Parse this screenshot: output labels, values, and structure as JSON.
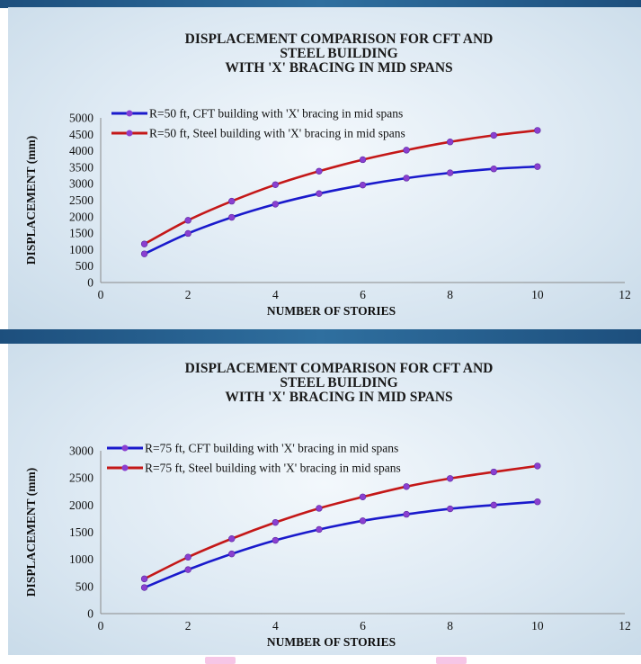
{
  "chart_data": [
    {
      "type": "line",
      "title_lines": [
        "DISPLACEMENT COMPARISON  FOR CFT AND",
        "STEEL BUILDING",
        "WITH 'X' BRACING IN MID SPANS"
      ],
      "xlabel": "NUMBER OF STORIES",
      "ylabel": "DISPLACEMENT (mm)",
      "xlim": [
        0,
        12
      ],
      "ylim": [
        0,
        5000
      ],
      "xticks": [
        0,
        2,
        4,
        6,
        8,
        10,
        12
      ],
      "yticks": [
        0,
        500,
        1000,
        1500,
        2000,
        2500,
        3000,
        3500,
        4000,
        4500,
        5000
      ],
      "legend_position": "top",
      "grid": false,
      "x": [
        1,
        2,
        3,
        4,
        5,
        6,
        7,
        8,
        9,
        10
      ],
      "series": [
        {
          "name": "R=50 ft, CFT building with 'X' bracing in mid spans",
          "color": "#1a1acc",
          "marker_color": "#8a3fd0",
          "values": [
            870,
            1490,
            1980,
            2380,
            2700,
            2960,
            3170,
            3330,
            3450,
            3520
          ]
        },
        {
          "name": "R=50 ft, Steel building with 'X' bracing in mid spans",
          "color": "#c41818",
          "marker_color": "#8a3fd0",
          "values": [
            1170,
            1890,
            2470,
            2970,
            3380,
            3730,
            4020,
            4270,
            4470,
            4620
          ]
        }
      ]
    },
    {
      "type": "line",
      "title_lines": [
        "DISPLACEMENT COMPARISON  FOR CFT AND",
        "STEEL BUILDING",
        "WITH 'X' BRACING IN MID SPANS"
      ],
      "xlabel": "NUMBER OF STORIES",
      "ylabel": "DISPLACEMENT (mm)",
      "xlim": [
        0,
        12
      ],
      "ylim": [
        0,
        3000
      ],
      "xticks": [
        0,
        2,
        4,
        6,
        8,
        10,
        12
      ],
      "yticks": [
        0,
        500,
        1000,
        1500,
        2000,
        2500,
        3000
      ],
      "legend_position": "top",
      "grid": false,
      "x": [
        1,
        2,
        3,
        4,
        5,
        6,
        7,
        8,
        9,
        10
      ],
      "series": [
        {
          "name": "R=75 ft, CFT building with 'X' bracing in mid spans",
          "color": "#1a1acc",
          "marker_color": "#8a3fd0",
          "values": [
            480,
            810,
            1100,
            1350,
            1550,
            1710,
            1830,
            1930,
            2000,
            2060
          ]
        },
        {
          "name": "R=75 ft, Steel building with 'X' bracing in mid spans",
          "color": "#c41818",
          "marker_color": "#8a3fd0",
          "values": [
            640,
            1040,
            1380,
            1680,
            1940,
            2150,
            2340,
            2490,
            2610,
            2720
          ]
        }
      ]
    }
  ]
}
